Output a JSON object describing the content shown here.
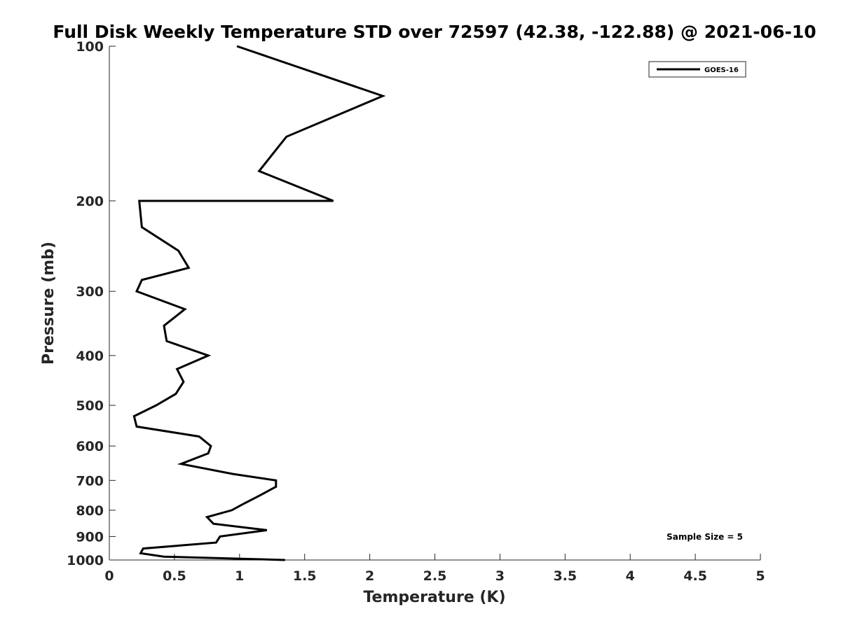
{
  "chart_data": {
    "type": "line",
    "title": "Full Disk Weekly Temperature STD over 72597 (42.38, -122.88) @ 2021-06-10",
    "xlabel": "Temperature (K)",
    "ylabel": "Pressure (mb)",
    "xlim": [
      0,
      5
    ],
    "ylim": [
      1000,
      100
    ],
    "y_scale": "log",
    "y_reversed": true,
    "x_ticks": [
      "0",
      "0.5",
      "1",
      "1.5",
      "2",
      "2.5",
      "3",
      "3.5",
      "4",
      "4.5",
      "5"
    ],
    "y_ticks": [
      "100",
      "200",
      "300",
      "400",
      "500",
      "600",
      "700",
      "800",
      "900",
      "1000"
    ],
    "grid": false,
    "legend_position": "top-right",
    "annotation": "Sample Size = 5",
    "series": [
      {
        "name": "GOES-16",
        "color": "#000000",
        "x": [
          0.98,
          2.1,
          1.36,
          1.15,
          1.72,
          0.23,
          0.25,
          0.53,
          0.61,
          0.25,
          0.21,
          0.58,
          0.42,
          0.44,
          0.76,
          0.52,
          0.57,
          0.51,
          0.36,
          0.19,
          0.21,
          0.69,
          0.78,
          0.76,
          0.55,
          0.95,
          1.28,
          1.28,
          1.15,
          1.02,
          0.94,
          0.75,
          0.8,
          1.21,
          0.85,
          0.82,
          0.26,
          0.24,
          0.42,
          1.35
        ],
        "y": [
          100,
          125,
          150,
          175,
          200,
          200,
          225,
          250,
          270,
          285,
          300,
          325,
          350,
          375,
          400,
          425,
          450,
          475,
          500,
          525,
          550,
          575,
          600,
          620,
          650,
          680,
          700,
          720,
          750,
          780,
          800,
          825,
          850,
          875,
          900,
          925,
          950,
          970,
          985,
          1000
        ]
      }
    ]
  }
}
